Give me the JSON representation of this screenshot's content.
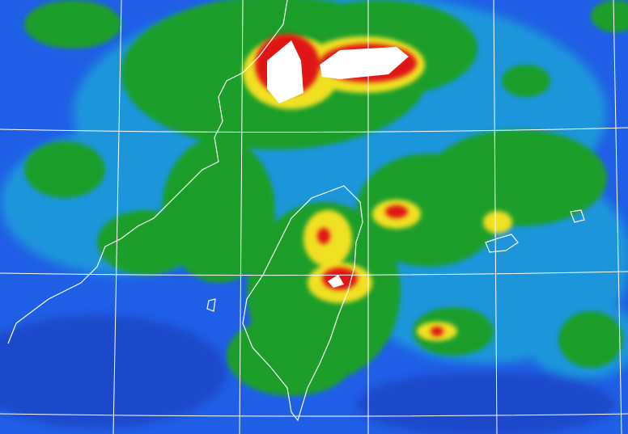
{
  "map": {
    "kind": "satellite-imagery",
    "region": "Taiwan Strait",
    "colors": {
      "background": "#1f5fe6",
      "deep": "#1a3fc0",
      "cyan": "#1ea3d8",
      "green": "#1e9e2a",
      "yellow": "#f0e020",
      "red": "#e01818",
      "white": "#ffffff",
      "grid": "#ffffff",
      "coastline": "#ffffff"
    }
  }
}
